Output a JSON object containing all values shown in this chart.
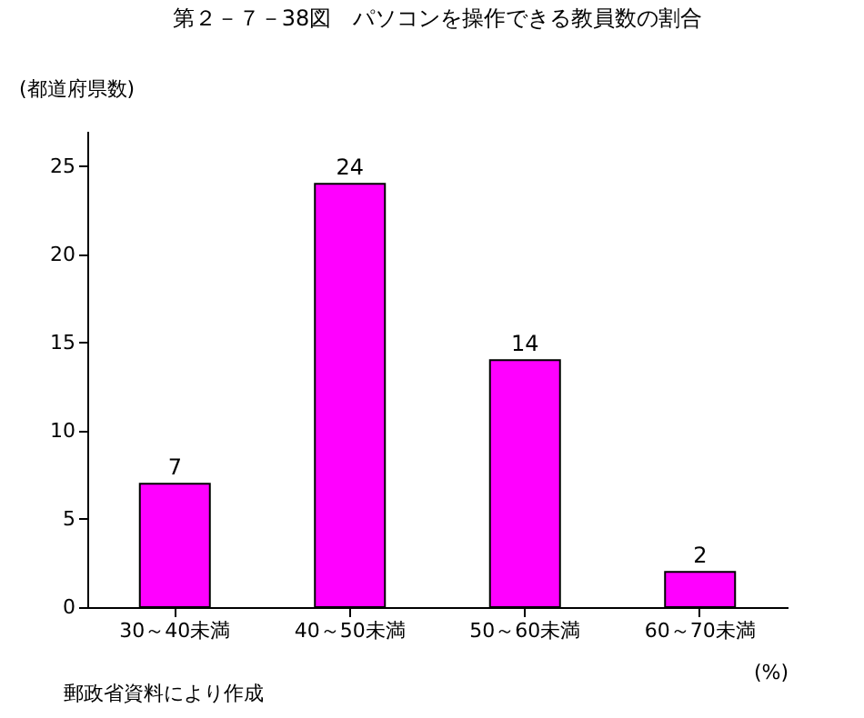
{
  "chart_data": {
    "type": "bar",
    "title": "第２－７－38図　パソコンを操作できる教員数の割合",
    "ylabel": "(都道府県数)",
    "xlabel": "(%)",
    "annotations": [
      "郵政省資料により作成"
    ],
    "categories": [
      "30～40未満",
      "40～50未満",
      "50～60未満",
      "60～70未満"
    ],
    "values": [
      7,
      24,
      14,
      2
    ],
    "color": "#ff00ff",
    "data_labels": true,
    "ylim": [
      0,
      27
    ],
    "yticks": [
      0,
      5,
      10,
      15,
      20,
      25
    ],
    "grid": false
  }
}
